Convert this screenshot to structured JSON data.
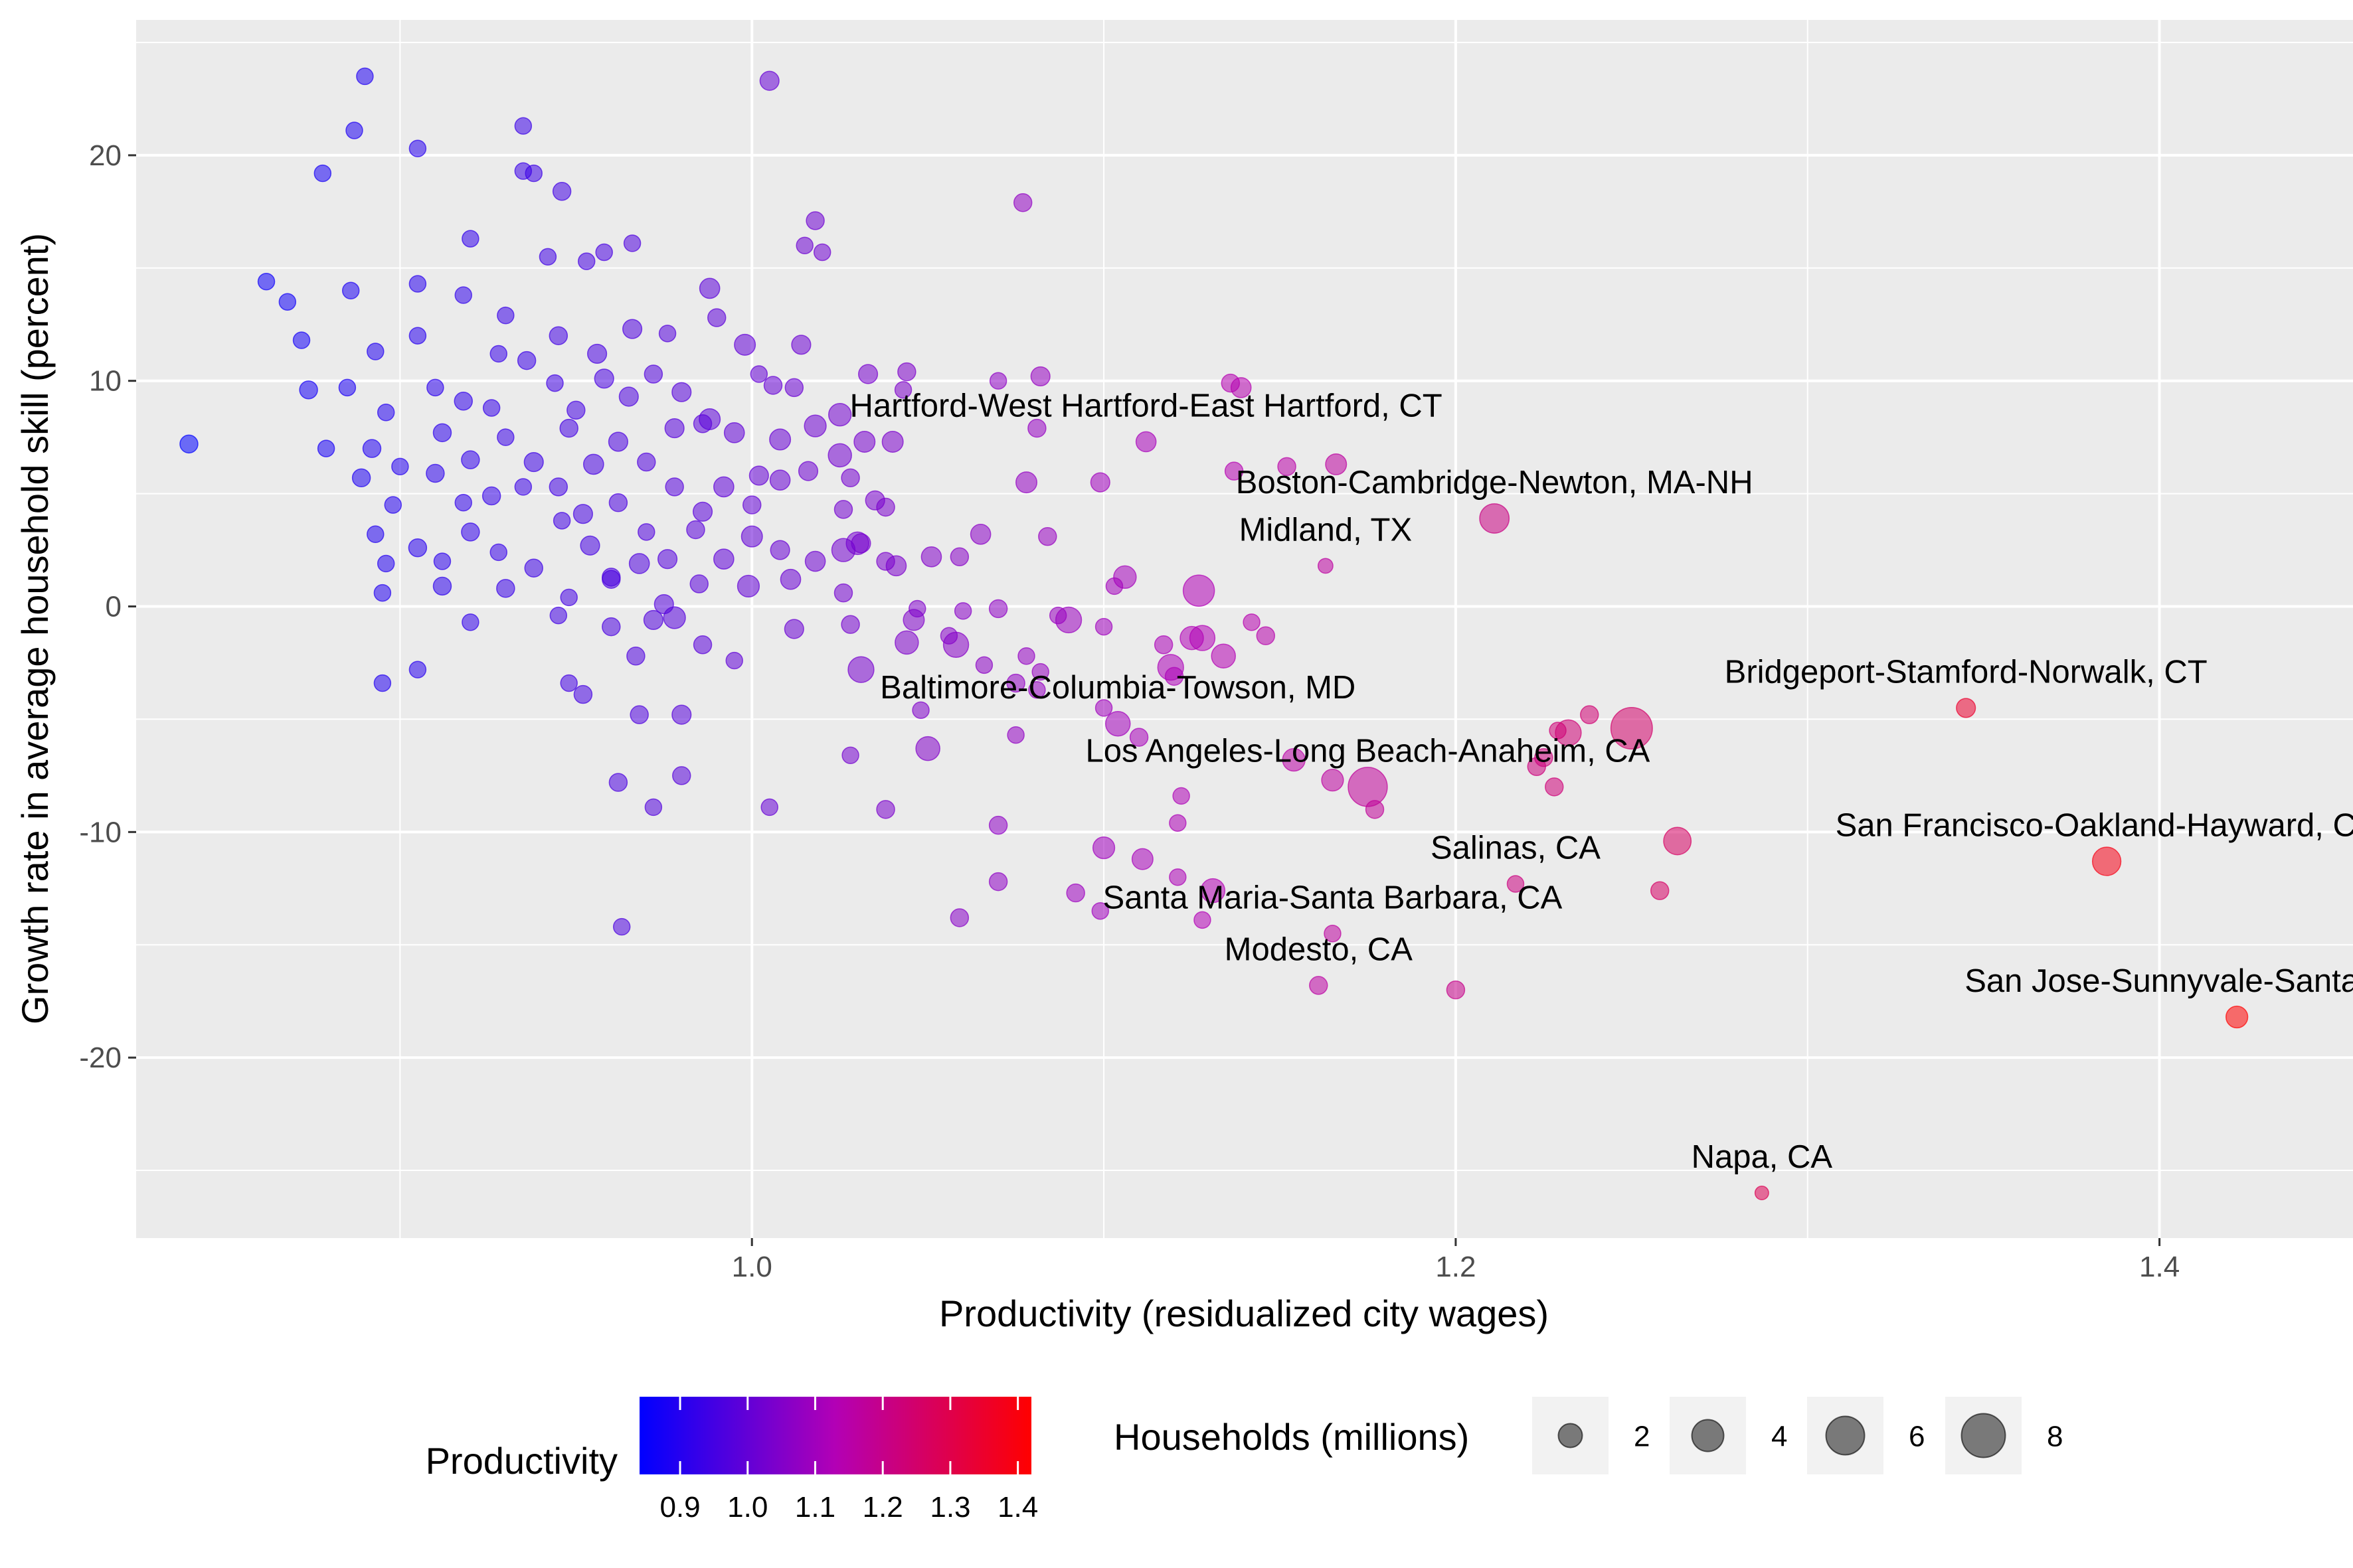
{
  "chart_data": {
    "type": "scatter",
    "xlabel": "Productivity (residualized city wages)",
    "ylabel": "Growth rate in average household skill (percent)",
    "xlim": [
      0.825,
      1.455
    ],
    "ylim": [
      -28.0,
      26.0
    ],
    "x_ticks": [
      1.0,
      1.2,
      1.4
    ],
    "x_tick_labels": [
      "1.0",
      "1.2",
      "1.4"
    ],
    "x_minor_ticks": [
      0.9,
      1.1,
      1.3
    ],
    "y_ticks": [
      -20,
      -10,
      0,
      10,
      20
    ],
    "y_tick_labels": [
      "-20",
      "-10",
      "0",
      "10",
      "20"
    ],
    "y_minor_ticks": [
      -25,
      -15,
      -5,
      5,
      15,
      25
    ],
    "grid": true,
    "legend_position": "bottom",
    "color_legend": {
      "title": "Productivity",
      "low_color": "#0000ff",
      "high_color": "#ff0000",
      "min": 0.84,
      "max": 1.42,
      "ticks": [
        0.9,
        1.0,
        1.1,
        1.2,
        1.3,
        1.4
      ],
      "tick_labels": [
        "0.9",
        "1.0",
        "1.1",
        "1.2",
        "1.3",
        "1.4"
      ]
    },
    "size_legend": {
      "title": "Households (millions)",
      "values": [
        2,
        4,
        6,
        8
      ],
      "labels": [
        "2",
        "4",
        "6",
        "8"
      ]
    },
    "labeled_points": [
      {
        "label": "Hartford-West Hartford-East Hartford, CT",
        "x": 1.112,
        "y": 7.3,
        "size": 0.5
      },
      {
        "label": "Boston-Cambridge-Newton, MA-NH",
        "x": 1.211,
        "y": 3.9,
        "size": 2.0
      },
      {
        "label": "Midland, TX",
        "x": 1.163,
        "y": 1.8,
        "size": 0.1
      },
      {
        "label": "Bridgeport-Stamford-Norwalk, CT",
        "x": 1.345,
        "y": -4.5,
        "size": 0.4
      },
      {
        "label": "Baltimore-Columbia-Towson, MD",
        "x": 1.104,
        "y": -5.2,
        "size": 1.1
      },
      {
        "label": "Los Angeles-Long Beach-Anaheim, CA",
        "x": 1.175,
        "y": -8.0,
        "size": 4.6
      },
      {
        "label": "San Francisco-Oakland-Hayward, CA",
        "x": 1.385,
        "y": -11.3,
        "size": 1.8
      },
      {
        "label": "Salinas, CA",
        "x": 1.217,
        "y": -12.3,
        "size": 0.2
      },
      {
        "label": "Santa Maria-Santa Barbara, CA",
        "x": 1.165,
        "y": -14.5,
        "size": 0.2
      },
      {
        "label": "Modesto, CA",
        "x": 1.161,
        "y": -16.8,
        "size": 0.3
      },
      {
        "label": "San Jose-Sunnyvale-Santa Clara, CA",
        "x": 1.422,
        "y": -18.2,
        "size": 0.7
      },
      {
        "label": "Napa, CA",
        "x": 1.287,
        "y": -26.0,
        "size": 0.05
      }
    ],
    "points": [
      [
        0.84,
        7.2,
        0.3
      ],
      [
        0.89,
        23.5,
        0.2
      ],
      [
        0.887,
        21.1,
        0.2
      ],
      [
        0.878,
        19.2,
        0.2
      ],
      [
        0.905,
        20.3,
        0.2
      ],
      [
        0.935,
        21.3,
        0.2
      ],
      [
        0.935,
        19.3,
        0.2
      ],
      [
        0.938,
        19.2,
        0.2
      ],
      [
        0.946,
        18.4,
        0.3
      ],
      [
        0.92,
        16.3,
        0.2
      ],
      [
        0.862,
        14.4,
        0.2
      ],
      [
        0.868,
        13.5,
        0.2
      ],
      [
        0.886,
        14.0,
        0.2
      ],
      [
        0.905,
        14.3,
        0.2
      ],
      [
        0.918,
        13.8,
        0.2
      ],
      [
        0.93,
        12.9,
        0.2
      ],
      [
        0.942,
        15.5,
        0.2
      ],
      [
        0.953,
        15.3,
        0.2
      ],
      [
        0.958,
        15.7,
        0.2
      ],
      [
        0.966,
        16.1,
        0.2
      ],
      [
        0.872,
        11.8,
        0.2
      ],
      [
        0.893,
        11.3,
        0.2
      ],
      [
        0.905,
        12.0,
        0.2
      ],
      [
        0.928,
        11.2,
        0.2
      ],
      [
        0.945,
        12.0,
        0.3
      ],
      [
        0.956,
        11.2,
        0.4
      ],
      [
        0.966,
        12.3,
        0.4
      ],
      [
        0.976,
        12.1,
        0.2
      ],
      [
        0.988,
        14.1,
        0.5
      ],
      [
        0.99,
        12.8,
        0.3
      ],
      [
        0.874,
        9.6,
        0.3
      ],
      [
        0.885,
        9.7,
        0.2
      ],
      [
        0.896,
        8.6,
        0.2
      ],
      [
        0.91,
        9.7,
        0.2
      ],
      [
        0.918,
        9.1,
        0.3
      ],
      [
        0.926,
        8.8,
        0.2
      ],
      [
        0.936,
        10.9,
        0.3
      ],
      [
        0.944,
        9.9,
        0.2
      ],
      [
        0.95,
        8.7,
        0.3
      ],
      [
        0.958,
        10.1,
        0.4
      ],
      [
        0.965,
        9.3,
        0.4
      ],
      [
        0.972,
        10.3,
        0.3
      ],
      [
        0.98,
        9.5,
        0.4
      ],
      [
        0.988,
        8.3,
        0.6
      ],
      [
        0.998,
        11.6,
        0.6
      ],
      [
        1.002,
        10.3,
        0.2
      ],
      [
        1.006,
        9.8,
        0.3
      ],
      [
        1.012,
        9.7,
        0.3
      ],
      [
        0.879,
        7.0,
        0.2
      ],
      [
        0.892,
        7.0,
        0.3
      ],
      [
        0.9,
        6.2,
        0.2
      ],
      [
        0.912,
        7.7,
        0.3
      ],
      [
        0.92,
        6.5,
        0.3
      ],
      [
        0.93,
        7.5,
        0.2
      ],
      [
        0.938,
        6.4,
        0.4
      ],
      [
        0.948,
        7.9,
        0.3
      ],
      [
        0.955,
        6.3,
        0.5
      ],
      [
        0.962,
        7.3,
        0.4
      ],
      [
        0.97,
        6.4,
        0.3
      ],
      [
        0.978,
        7.9,
        0.4
      ],
      [
        0.986,
        8.1,
        0.3
      ],
      [
        0.995,
        7.7,
        0.5
      ],
      [
        1.002,
        5.8,
        0.4
      ],
      [
        1.008,
        7.4,
        0.6
      ],
      [
        1.018,
        8.0,
        0.7
      ],
      [
        1.025,
        6.7,
        0.9
      ],
      [
        1.032,
        7.3,
        0.6
      ],
      [
        0.889,
        5.7,
        0.3
      ],
      [
        0.898,
        4.5,
        0.2
      ],
      [
        0.91,
        5.9,
        0.3
      ],
      [
        0.918,
        4.6,
        0.2
      ],
      [
        0.926,
        4.9,
        0.3
      ],
      [
        0.935,
        5.3,
        0.2
      ],
      [
        0.945,
        5.3,
        0.3
      ],
      [
        0.952,
        4.1,
        0.4
      ],
      [
        0.962,
        4.6,
        0.3
      ],
      [
        0.97,
        3.3,
        0.2
      ],
      [
        0.978,
        5.3,
        0.3
      ],
      [
        0.986,
        4.2,
        0.4
      ],
      [
        0.992,
        5.3,
        0.5
      ],
      [
        1.0,
        4.5,
        0.3
      ],
      [
        1.008,
        5.6,
        0.5
      ],
      [
        1.016,
        6.0,
        0.4
      ],
      [
        1.026,
        4.3,
        0.3
      ],
      [
        0.893,
        3.2,
        0.2
      ],
      [
        0.896,
        1.9,
        0.2
      ],
      [
        0.905,
        2.6,
        0.3
      ],
      [
        0.912,
        2.0,
        0.2
      ],
      [
        0.92,
        3.3,
        0.3
      ],
      [
        0.928,
        2.4,
        0.2
      ],
      [
        0.938,
        1.7,
        0.3
      ],
      [
        0.946,
        3.8,
        0.2
      ],
      [
        0.954,
        2.7,
        0.4
      ],
      [
        0.96,
        1.3,
        0.3
      ],
      [
        0.968,
        1.9,
        0.5
      ],
      [
        0.976,
        2.1,
        0.4
      ],
      [
        0.984,
        3.4,
        0.3
      ],
      [
        0.992,
        2.1,
        0.5
      ],
      [
        1.0,
        3.1,
        0.6
      ],
      [
        1.008,
        2.5,
        0.4
      ],
      [
        1.018,
        2.0,
        0.5
      ],
      [
        1.03,
        2.8,
        0.8
      ],
      [
        0.895,
        0.6,
        0.2
      ],
      [
        0.912,
        0.9,
        0.3
      ],
      [
        0.93,
        0.8,
        0.3
      ],
      [
        0.948,
        0.4,
        0.2
      ],
      [
        0.96,
        1.2,
        0.3
      ],
      [
        0.975,
        0.1,
        0.4
      ],
      [
        0.985,
        1.0,
        0.3
      ],
      [
        0.999,
        0.9,
        0.7
      ],
      [
        1.011,
        1.2,
        0.5
      ],
      [
        1.026,
        0.6,
        0.3
      ],
      [
        0.92,
        -0.7,
        0.2
      ],
      [
        0.945,
        -0.4,
        0.2
      ],
      [
        0.96,
        -0.9,
        0.3
      ],
      [
        0.972,
        -0.6,
        0.4
      ],
      [
        0.978,
        -0.5,
        0.7
      ],
      [
        0.986,
        -1.7,
        0.3
      ],
      [
        0.995,
        -2.4,
        0.2
      ],
      [
        1.012,
        -1.0,
        0.4
      ],
      [
        1.028,
        -0.8,
        0.3
      ],
      [
        0.967,
        -2.2,
        0.3
      ],
      [
        0.905,
        -2.8,
        0.2
      ],
      [
        0.948,
        -3.4,
        0.2
      ],
      [
        0.895,
        -3.4,
        0.2
      ],
      [
        0.952,
        -3.9,
        0.3
      ],
      [
        0.968,
        -4.8,
        0.3
      ],
      [
        0.98,
        -4.8,
        0.4
      ],
      [
        0.98,
        -7.5,
        0.3
      ],
      [
        0.962,
        -7.8,
        0.3
      ],
      [
        0.972,
        -8.9,
        0.2
      ],
      [
        1.005,
        -8.9,
        0.2
      ],
      [
        0.963,
        -14.2,
        0.2
      ],
      [
        1.005,
        23.3,
        0.4
      ],
      [
        1.018,
        17.1,
        0.3
      ],
      [
        1.015,
        16.0,
        0.2
      ],
      [
        1.02,
        15.7,
        0.2
      ],
      [
        1.014,
        11.6,
        0.4
      ],
      [
        1.033,
        10.3,
        0.4
      ],
      [
        1.044,
        10.4,
        0.3
      ],
      [
        1.043,
        9.6,
        0.2
      ],
      [
        1.025,
        8.5,
        0.8
      ],
      [
        1.04,
        7.3,
        0.6
      ],
      [
        1.028,
        5.7,
        0.3
      ],
      [
        1.035,
        4.7,
        0.4
      ],
      [
        1.038,
        4.4,
        0.3
      ],
      [
        1.031,
        2.8,
        0.4
      ],
      [
        1.026,
        2.5,
        0.9
      ],
      [
        1.041,
        1.8,
        0.5
      ],
      [
        1.051,
        2.2,
        0.5
      ],
      [
        1.059,
        2.2,
        0.3
      ],
      [
        1.065,
        3.2,
        0.5
      ],
      [
        1.038,
        2.0,
        0.3
      ],
      [
        1.047,
        -0.1,
        0.2
      ],
      [
        1.046,
        -0.6,
        0.6
      ],
      [
        1.044,
        -1.6,
        0.9
      ],
      [
        1.058,
        -1.7,
        1.2
      ],
      [
        1.06,
        -0.2,
        0.2
      ],
      [
        1.056,
        -1.3,
        0.2
      ],
      [
        1.066,
        -2.6,
        0.2
      ],
      [
        1.07,
        -0.1,
        0.3
      ],
      [
        1.031,
        -2.8,
        1.3
      ],
      [
        1.048,
        -4.6,
        0.2
      ],
      [
        1.05,
        -6.3,
        1.0
      ],
      [
        1.028,
        -6.6,
        0.2
      ],
      [
        1.038,
        -9.0,
        0.3
      ],
      [
        1.07,
        -9.7,
        0.3
      ],
      [
        1.07,
        -12.2,
        0.3
      ],
      [
        1.059,
        -13.8,
        0.3
      ],
      [
        1.07,
        10.0,
        0.2
      ],
      [
        1.077,
        17.9,
        0.3
      ],
      [
        1.082,
        10.2,
        0.4
      ],
      [
        1.081,
        7.9,
        0.3
      ],
      [
        1.078,
        5.5,
        0.6
      ],
      [
        1.084,
        3.1,
        0.3
      ],
      [
        1.075,
        -3.4,
        0.3
      ],
      [
        1.078,
        -2.2,
        0.2
      ],
      [
        1.082,
        -2.9,
        0.2
      ],
      [
        1.087,
        -0.4,
        0.2
      ],
      [
        1.081,
        -3.7,
        0.2
      ],
      [
        1.075,
        -5.7,
        0.2
      ],
      [
        1.09,
        -0.6,
        1.3
      ],
      [
        1.099,
        5.5,
        0.4
      ],
      [
        1.103,
        0.9,
        0.2
      ],
      [
        1.106,
        1.3,
        0.8
      ],
      [
        1.1,
        -0.9,
        0.2
      ],
      [
        1.1,
        -4.5,
        0.2
      ],
      [
        1.11,
        -5.8,
        0.3
      ],
      [
        1.1,
        -10.7,
        0.7
      ],
      [
        1.111,
        -11.2,
        0.6
      ],
      [
        1.092,
        -12.7,
        0.3
      ],
      [
        1.099,
        -13.5,
        0.2
      ],
      [
        1.122,
        -8.4,
        0.2
      ],
      [
        1.121,
        -9.6,
        0.2
      ],
      [
        1.121,
        -12.0,
        0.2
      ],
      [
        1.127,
        0.7,
        2.4
      ],
      [
        1.128,
        -1.4,
        1.2
      ],
      [
        1.125,
        -1.4,
        0.9
      ],
      [
        1.119,
        -2.7,
        1.3
      ],
      [
        1.12,
        -3.1,
        0.3
      ],
      [
        1.117,
        -1.7,
        0.3
      ],
      [
        1.134,
        -2.2,
        1.0
      ],
      [
        1.128,
        -13.9,
        0.2
      ],
      [
        1.131,
        -12.6,
        1.0
      ],
      [
        1.137,
        6.0,
        0.3
      ],
      [
        1.139,
        9.7,
        0.5
      ],
      [
        1.136,
        9.9,
        0.3
      ],
      [
        1.142,
        -0.7,
        0.2
      ],
      [
        1.146,
        -1.3,
        0.3
      ],
      [
        1.152,
        6.2,
        0.3
      ],
      [
        1.166,
        6.3,
        0.6
      ],
      [
        1.154,
        -6.8,
        0.8
      ],
      [
        1.165,
        -7.7,
        0.7
      ],
      [
        1.177,
        -9.0,
        0.3
      ],
      [
        1.225,
        -6.7,
        0.3
      ],
      [
        1.228,
        -8.0,
        0.3
      ],
      [
        1.223,
        -7.1,
        0.3
      ],
      [
        1.229,
        -5.5,
        0.2
      ],
      [
        1.232,
        -5.6,
        1.3
      ],
      [
        1.238,
        -4.8,
        0.3
      ],
      [
        1.25,
        -5.4,
        5.4
      ],
      [
        1.263,
        -10.4,
        1.6
      ],
      [
        1.258,
        -12.6,
        0.3
      ],
      [
        1.2,
        -17.0,
        0.3
      ]
    ]
  }
}
